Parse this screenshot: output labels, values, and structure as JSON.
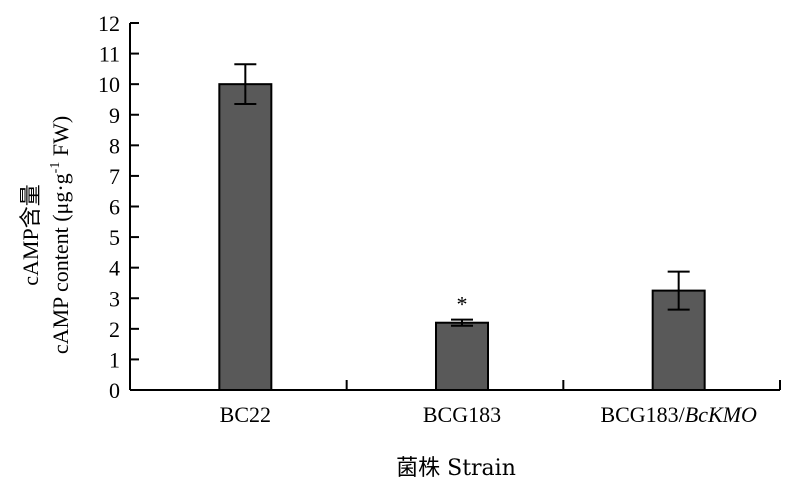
{
  "chart_data": {
    "type": "bar",
    "categories": [
      "BC22",
      "BCG183",
      "BCG183/"
    ],
    "category_italic_suffix": [
      "",
      "",
      "BcKMO"
    ],
    "values": [
      10.0,
      2.2,
      3.25
    ],
    "error": [
      0.65,
      0.1,
      0.62
    ],
    "ylim": [
      0,
      12
    ],
    "yticks": [
      "0",
      "1",
      "2",
      "3",
      "4",
      "5",
      "6",
      "7",
      "8",
      "9",
      "10",
      "11",
      "12"
    ],
    "ylabel_line1_prefix": "cAMP",
    "ylabel_line1_cjk": "含量",
    "ylabel_line2_main": "cAMP content (μg·g",
    "ylabel_line2_sup": "-1",
    "ylabel_line2_tail": " FW)",
    "xlabel": "菌株 Strain",
    "annotations": [
      {
        "category": "BCG183",
        "text": "*"
      }
    ],
    "bar_color": "#595959",
    "grid": false,
    "legend": "none"
  }
}
